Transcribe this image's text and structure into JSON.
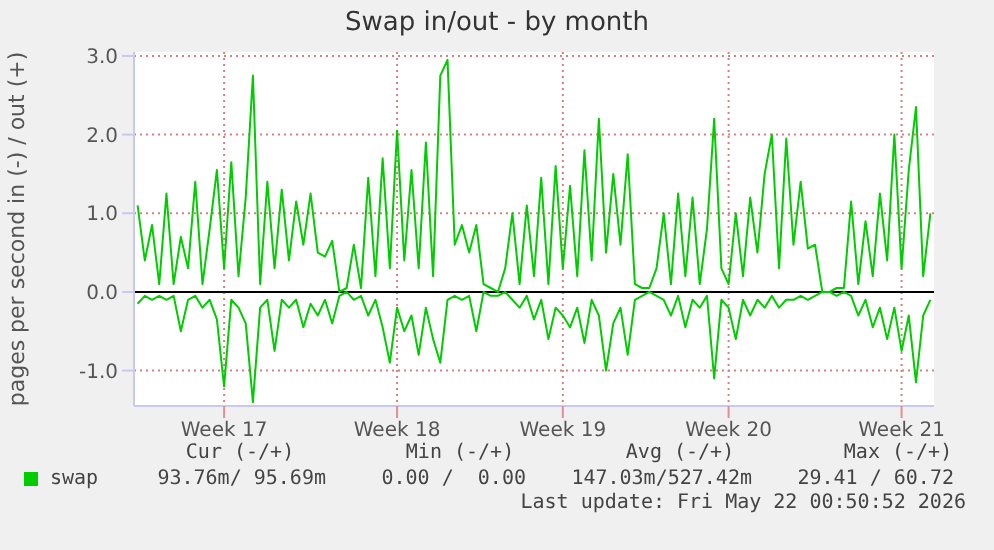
{
  "chart_data": {
    "type": "line",
    "title": "Swap in/out - by month",
    "ylabel": "pages per second in (-) / out (+)",
    "categories": [
      null,
      null,
      null,
      null,
      null,
      null,
      null,
      null,
      null,
      null,
      null,
      null,
      "Week 17",
      null,
      null,
      null,
      null,
      null,
      null,
      null,
      null,
      null,
      null,
      null,
      null,
      null,
      null,
      null,
      null,
      null,
      null,
      null,
      null,
      null,
      null,
      null,
      "Week 18",
      null,
      null,
      null,
      null,
      null,
      null,
      null,
      null,
      null,
      null,
      null,
      null,
      null,
      null,
      null,
      null,
      null,
      null,
      null,
      null,
      null,
      null,
      "Week 19",
      null,
      null,
      null,
      null,
      null,
      null,
      null,
      null,
      null,
      null,
      null,
      null,
      null,
      null,
      null,
      null,
      null,
      null,
      null,
      null,
      null,
      null,
      "Week 20",
      null,
      null,
      null,
      null,
      null,
      null,
      null,
      null,
      null,
      null,
      null,
      null,
      null,
      null,
      null,
      null,
      null,
      null,
      null,
      null,
      null,
      null,
      null,
      "Week 21",
      null,
      null,
      null,
      null
    ],
    "series": [
      {
        "name": "swap",
        "color": "#00cc00",
        "values": [
          1.1,
          0.4,
          0.85,
          0.1,
          1.25,
          0.1,
          0.7,
          0.3,
          1.4,
          0.1,
          0.8,
          1.55,
          0.3,
          1.65,
          0.2,
          1.2,
          2.75,
          0.1,
          1.4,
          0.3,
          1.3,
          0.4,
          1.15,
          0.6,
          1.25,
          0.5,
          0.45,
          0.65,
          0.0,
          0.05,
          0.6,
          0.05,
          1.45,
          0.2,
          1.7,
          0.3,
          2.05,
          0.4,
          1.55,
          0.3,
          1.9,
          0.2,
          2.75,
          2.95,
          0.6,
          0.85,
          0.5,
          0.85,
          0.1,
          0.05,
          0.0,
          0.3,
          1.0,
          0.1,
          1.1,
          0.2,
          1.45,
          0.1,
          1.6,
          0.3,
          1.35,
          0.2,
          1.8,
          0.4,
          2.2,
          0.5,
          1.5,
          0.6,
          1.75,
          0.1,
          0.05,
          0.05,
          0.3,
          1.0,
          0.1,
          1.25,
          0.2,
          1.2,
          0.1,
          0.8,
          2.2,
          0.3,
          0.1,
          1.0,
          0.2,
          1.2,
          0.5,
          1.5,
          2.0,
          0.3,
          1.95,
          0.6,
          1.4,
          0.55,
          0.6,
          0.0,
          0.0,
          0.05,
          0.05,
          1.15,
          0.1,
          0.9,
          0.2,
          1.25,
          0.4,
          2.0,
          0.3,
          1.55,
          2.35,
          0.2,
          1.0
        ]
      },
      {
        "color": "#00cc00",
        "values": [
          -0.15,
          -0.05,
          -0.1,
          -0.05,
          -0.1,
          -0.05,
          -0.5,
          -0.1,
          -0.05,
          -0.2,
          -0.1,
          -0.35,
          -1.2,
          -0.1,
          -0.2,
          -0.4,
          -1.4,
          -0.2,
          -0.1,
          -0.75,
          -0.1,
          -0.2,
          -0.1,
          -0.45,
          -0.15,
          -0.3,
          -0.1,
          -0.4,
          -0.05,
          0.0,
          -0.1,
          -0.05,
          -0.3,
          -0.1,
          -0.45,
          -0.9,
          -0.2,
          -0.5,
          -0.3,
          -0.8,
          -0.2,
          -0.6,
          -0.9,
          -0.1,
          -0.05,
          -0.1,
          -0.05,
          -0.5,
          0.0,
          -0.05,
          -0.05,
          0.0,
          -0.1,
          -0.2,
          -0.05,
          -0.35,
          -0.1,
          -0.6,
          -0.2,
          -0.3,
          -0.45,
          -0.2,
          -0.65,
          -0.1,
          -0.3,
          -1.0,
          -0.4,
          -0.2,
          -0.8,
          -0.1,
          -0.05,
          0.0,
          -0.05,
          -0.1,
          -0.3,
          -0.05,
          -0.45,
          -0.1,
          -0.2,
          -0.05,
          -1.1,
          -0.1,
          -0.2,
          -0.6,
          -0.1,
          -0.3,
          -0.1,
          -0.2,
          -0.05,
          -0.2,
          -0.1,
          -0.1,
          -0.05,
          -0.1,
          -0.05,
          0.0,
          0.0,
          -0.05,
          0.0,
          -0.05,
          -0.3,
          -0.1,
          -0.45,
          -0.2,
          -0.6,
          -0.2,
          -0.75,
          -0.3,
          -1.15,
          -0.3,
          -0.1
        ]
      }
    ],
    "ylim": [
      -1.45,
      3.05
    ],
    "yticks": [
      {
        "value": -1,
        "label": "-1.0"
      },
      {
        "value": 0,
        "label": "0.0"
      },
      {
        "value": 1,
        "label": "1.0"
      },
      {
        "value": 2,
        "label": "2.0"
      },
      {
        "value": 3,
        "label": "3.0"
      }
    ],
    "ref_lines": [
      {
        "axis": "y",
        "value": 0,
        "color": "#000000"
      }
    ],
    "grid": true,
    "legend": "bottom",
    "marker": "none",
    "line_style": "solid",
    "annotations": [
      "Cur (-/+)",
      "Min (-/+)",
      "Avg (-/+)",
      "Max (-/+)",
      "93.76m/ 95.69m",
      "0.00 /  0.00",
      "147.03m/527.42m",
      "29.41 / 60.72",
      "Last update: Fri May 22 00:50:52 2026"
    ]
  }
}
